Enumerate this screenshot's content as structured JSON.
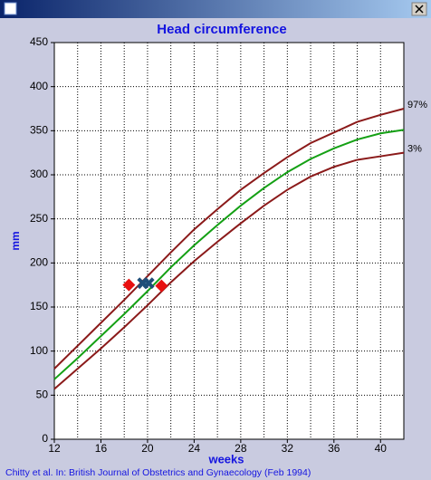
{
  "chart_data": {
    "type": "line",
    "title": "Head circumference",
    "x_label": "weeks",
    "y_label": "mm",
    "footer": "Chitty et al. In: British Journal of Obstetrics and Gynaecology (Feb 1994)",
    "x": [
      12,
      14,
      16,
      18,
      20,
      22,
      24,
      26,
      28,
      30,
      32,
      34,
      36,
      38,
      40,
      42
    ],
    "series": [
      {
        "name": "97%",
        "color": "#8b1a1a",
        "values": [
          80,
          106,
          132,
          158,
          185,
          212,
          238,
          261,
          283,
          302,
          320,
          336,
          348,
          360,
          368,
          375
        ]
      },
      {
        "color": "#14a014",
        "values": [
          68,
          92,
          117,
          142,
          168,
          195,
          220,
          243,
          265,
          285,
          303,
          318,
          330,
          340,
          347,
          351
        ]
      },
      {
        "name": "3%",
        "color": "#8b1a1a",
        "values": [
          57,
          80,
          103,
          127,
          152,
          178,
          202,
          224,
          245,
          265,
          283,
          298,
          309,
          317,
          321,
          325
        ]
      }
    ],
    "points": [
      {
        "marker": "diamond",
        "color": "#e81010",
        "x": [
          18.4,
          21.2
        ],
        "y": [
          175,
          174
        ]
      },
      {
        "marker": "x",
        "color": "#1f4e79",
        "x": [
          19.6,
          20.1
        ],
        "y": [
          177,
          177
        ]
      }
    ],
    "xlim": [
      12,
      42
    ],
    "ylim": [
      0,
      450
    ],
    "xticks": [
      12,
      16,
      20,
      24,
      28,
      32,
      36,
      40
    ],
    "yticks": [
      0,
      50,
      100,
      150,
      200,
      250,
      300,
      350,
      400,
      450
    ],
    "xgrid": [
      14,
      16,
      18,
      20,
      22,
      24,
      26,
      28,
      30,
      32,
      34,
      36,
      38,
      40
    ],
    "grid": true
  }
}
